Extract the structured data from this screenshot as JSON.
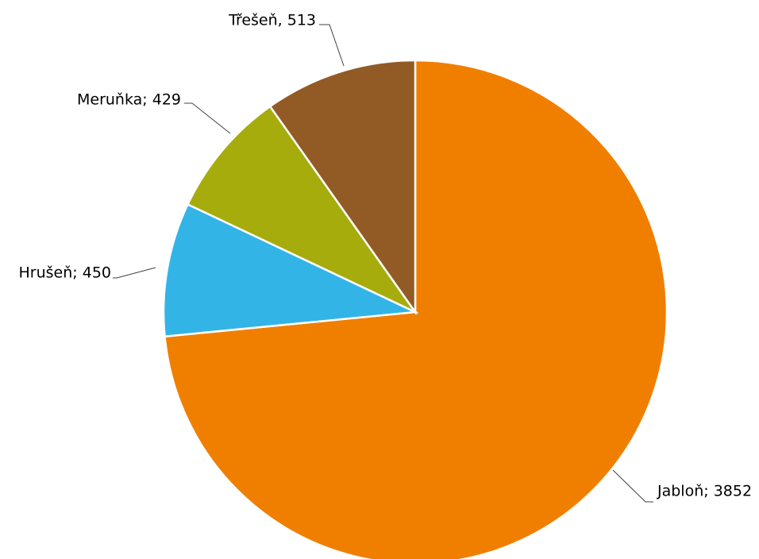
{
  "chart_data": {
    "type": "pie",
    "title": "",
    "legend": "none",
    "start_angle": "12 o'clock",
    "direction": "clockwise",
    "slices": [
      {
        "label": "Jabloň",
        "value": 3852,
        "data_label": "Jabloň; 3852",
        "color": "#F07F00"
      },
      {
        "label": "Hrušeň",
        "value": 450,
        "data_label": "Hrušeň; 450",
        "color": "#33B4E7"
      },
      {
        "label": "Meruňka",
        "value": 429,
        "data_label": "Meruňka; 429",
        "color": "#A5AC0C"
      },
      {
        "label": "Třešeň",
        "value": 513,
        "data_label": "Třešeň, 513",
        "color": "#925B25"
      }
    ]
  }
}
